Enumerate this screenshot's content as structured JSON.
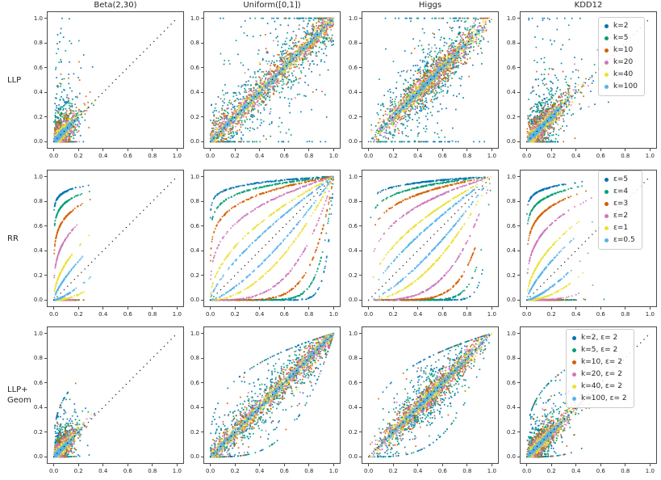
{
  "chart_data": {
    "type": "scatter",
    "description": "3x4 grid of scatter plots of true value (x) vs privately estimated value (y); dotted y=x reference line in every panel; axes 0.0-1.0 with ticks every 0.2",
    "axes": {
      "xlim": [
        0,
        1
      ],
      "ylim": [
        0,
        1
      ],
      "margin": 0.05,
      "ticks": [
        "0.0",
        "0.2",
        "0.4",
        "0.6",
        "0.8",
        "1.0"
      ],
      "diagonal_reference": "y = x, black dotted",
      "grid": false
    },
    "columns": [
      {
        "key": "beta",
        "title": "Beta(2,30)",
        "dist": "beta230",
        "n": 300
      },
      {
        "key": "uniform",
        "title": "Uniform([0,1])",
        "dist": "uniform",
        "n": 430
      },
      {
        "key": "higgs",
        "title": "Higgs",
        "dist": "higgs",
        "n": 430
      },
      {
        "key": "kdd12",
        "title": "KDD12",
        "dist": "kdd12",
        "n": 340
      }
    ],
    "rows": [
      {
        "key": "llp",
        "label": "LLP",
        "kind": "noisy-diagonal",
        "legend_position": "upper right",
        "series": [
          {
            "label": "k=2",
            "color": "#0173b2",
            "sigma": 0.42,
            "tail_p": 0.22,
            "tail": 1.0
          },
          {
            "label": "k=5",
            "color": "#029e73",
            "sigma": 0.26,
            "tail_p": 0.1,
            "tail": 0.7
          },
          {
            "label": "k=10",
            "color": "#d55e00",
            "sigma": 0.17,
            "tail_p": 0.05,
            "tail": 0.5
          },
          {
            "label": "k=20",
            "color": "#cc78bc",
            "sigma": 0.115,
            "tail_p": 0.03,
            "tail": 0.35
          },
          {
            "label": "k=40",
            "color": "#ece133",
            "sigma": 0.075,
            "tail_p": 0.015,
            "tail": 0.25
          },
          {
            "label": "k=100",
            "color": "#56b4e9",
            "sigma": 0.034,
            "tail_p": 0.0,
            "tail": 0.1
          }
        ]
      },
      {
        "key": "rr",
        "label": "RR",
        "kind": "power-curves",
        "legend_position": "upper right",
        "series": [
          {
            "label": "ε=5",
            "color": "#0173b2",
            "exp": 0.055
          },
          {
            "label": "ε=4",
            "color": "#029e73",
            "exp": 0.1
          },
          {
            "label": "ε=3",
            "color": "#d55e00",
            "exp": 0.17
          },
          {
            "label": "ε=2",
            "color": "#cc78bc",
            "exp": 0.3
          },
          {
            "label": "ε=1",
            "color": "#ece133",
            "exp": 0.52
          },
          {
            "label": "ε=0.5",
            "color": "#56b4e9",
            "exp": 0.72
          }
        ]
      },
      {
        "key": "llp-geom",
        "label": "LLP+\nGeom",
        "kind": "noisy-diagonal-lens",
        "lens_exp": 0.3,
        "legend_position": "upper right",
        "series": [
          {
            "label": "k=2, ε= 2",
            "color": "#0173b2",
            "sigma": 0.3,
            "tail_p": 0.25,
            "tail": 0.9
          },
          {
            "label": "k=5, ε= 2",
            "color": "#029e73",
            "sigma": 0.2,
            "tail_p": 0.12,
            "tail": 0.6
          },
          {
            "label": "k=10, ε= 2",
            "color": "#d55e00",
            "sigma": 0.14,
            "tail_p": 0.06,
            "tail": 0.45
          },
          {
            "label": "k=20, ε= 2",
            "color": "#cc78bc",
            "sigma": 0.1,
            "tail_p": 0.03,
            "tail": 0.3
          },
          {
            "label": "k=40, ε= 2",
            "color": "#ece133",
            "sigma": 0.065,
            "tail_p": 0.015,
            "tail": 0.2
          },
          {
            "label": "k=100, ε= 2",
            "color": "#56b4e9",
            "sigma": 0.03,
            "tail_p": 0.0,
            "tail": 0.08
          }
        ]
      }
    ],
    "palette": {
      "blue": "#0173b2",
      "green": "#029e73",
      "orange": "#d55e00",
      "pink": "#cc78bc",
      "yellow": "#ece133",
      "skyblue": "#56b4e9",
      "diagonal": "#111111",
      "spine": "#4a4a4a",
      "text": "#262626"
    }
  }
}
